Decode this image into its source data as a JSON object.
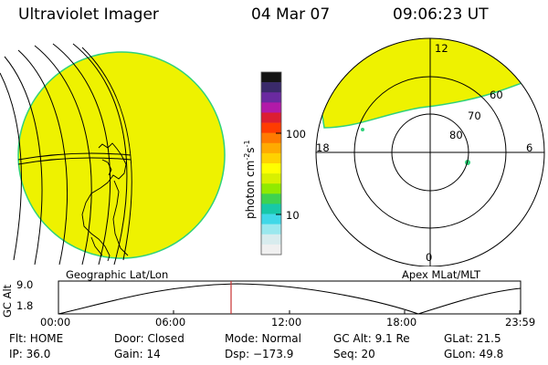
{
  "header": {
    "title": "Ultraviolet Imager",
    "date": "04 Mar 07",
    "time": "09:06:23 UT"
  },
  "colors": {
    "image_fill": "#eef200",
    "image_edge": "#2fd27a",
    "map_lines": "#000000",
    "time_marker": "#c83232"
  },
  "colorbar": {
    "unit_label": "photon cm",
    "unit_exp1": "-2",
    "unit_s": "s",
    "unit_exp2": "-1",
    "tick_labels": [
      "100",
      "10"
    ],
    "colors": [
      "#141414",
      "#3a2a6a",
      "#6a2aa0",
      "#b21aa8",
      "#dc1e32",
      "#ff3c00",
      "#ff7a00",
      "#ffaa00",
      "#ffd200",
      "#ffff00",
      "#d8f000",
      "#90ea00",
      "#3ed250",
      "#18c8a8",
      "#40d8e8",
      "#9ae8ee",
      "#d8ecee",
      "#f0f0f0"
    ]
  },
  "geo_panel": {
    "label": "Geographic Lat/Lon"
  },
  "polar_panel": {
    "label": "Apex MLat/MLT",
    "mlt_labels": {
      "top": "12",
      "left": "18",
      "right": "6",
      "bottom": "0"
    },
    "lat_labels": [
      "60",
      "70",
      "80"
    ]
  },
  "altitude_plot": {
    "ylabel": "GC Alt",
    "ymax_label": "9.0",
    "ymin_label": "1.8",
    "x_labels": [
      "00:00",
      "06:00",
      "12:00",
      "18:00",
      "23:59"
    ],
    "current_time": "09:06"
  },
  "info": {
    "row1": {
      "flt": "Flt: HOME",
      "door": "Door: Closed",
      "mode": "Mode: Normal",
      "gc_alt": "GC Alt: 9.1 Re",
      "glat": "GLat:  21.5"
    },
    "row2": {
      "ip": "IP: 36.0",
      "gain": "Gain: 14",
      "dsp": "Dsp: −173.9",
      "seq": "Seq: 20",
      "glon": "GLon:  49.8"
    }
  }
}
